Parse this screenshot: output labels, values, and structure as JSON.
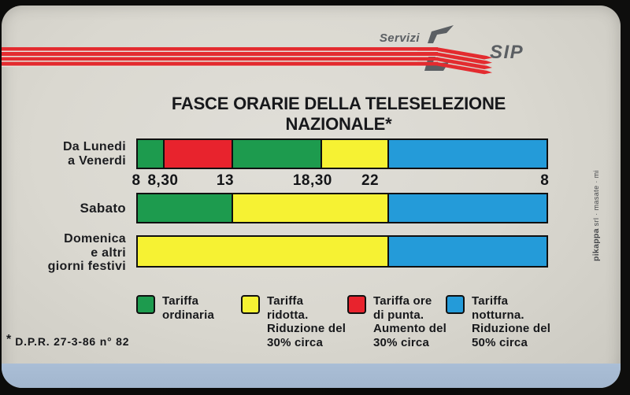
{
  "logo": {
    "servizi": "Servizi",
    "sip": "SIP"
  },
  "title": "FASCE ORARIE DELLA TELESELEZIONE NAZIONALE*",
  "colors": {
    "green": "#1d9b4e",
    "red": "#e8232d",
    "yellow": "#f6f233",
    "blue": "#249bd9",
    "stripe_red": "#e32b2f",
    "logo_gray": "#5b5f63",
    "card_bg": "#dad8d0",
    "bottom_band_blue": "#a7bbd3",
    "text_dark": "#17181b"
  },
  "chart_data": {
    "type": "bar",
    "subtype": "horizontal-time-bands",
    "title": "FASCE ORARIE DELLA TELESELEZIONE NAZIONALE*",
    "x_tick_labels": [
      "8",
      "8,30",
      "13",
      "18,30",
      "22",
      "8"
    ],
    "x_axis_note": "hours of day, from 8:00 to 8:00 of the next day",
    "legend_position": "bottom",
    "rows": [
      {
        "category": "Da Lunedi a Venerdi",
        "category_lines": [
          "Da Lunedi",
          "a Venerdi"
        ],
        "bands": [
          {
            "start": "8",
            "end": "8,30",
            "tariff": "Tariffa ordinaria",
            "color_key": "green",
            "width_pct": 6.1
          },
          {
            "start": "8,30",
            "end": "13",
            "tariff": "Tariffa ore di punta",
            "color_key": "red",
            "width_pct": 16.8
          },
          {
            "start": "13",
            "end": "18,30",
            "tariff": "Tariffa ordinaria",
            "color_key": "green",
            "width_pct": 21.8
          },
          {
            "start": "18,30",
            "end": "22",
            "tariff": "Tariffa ridotta",
            "color_key": "yellow",
            "width_pct": 16.3
          },
          {
            "start": "22",
            "end": "8",
            "tariff": "Tariffa notturna",
            "color_key": "blue",
            "width_pct": 39.0
          }
        ]
      },
      {
        "category": "Sabato",
        "category_lines": [
          "Sabato"
        ],
        "bands": [
          {
            "start": "8",
            "end": "13",
            "tariff": "Tariffa ordinaria",
            "color_key": "green",
            "width_pct": 22.9
          },
          {
            "start": "13",
            "end": "22",
            "tariff": "Tariffa ridotta",
            "color_key": "yellow",
            "width_pct": 38.1
          },
          {
            "start": "22",
            "end": "8",
            "tariff": "Tariffa notturna",
            "color_key": "blue",
            "width_pct": 39.0
          }
        ]
      },
      {
        "category": "Domenica e altri giorni festivi",
        "category_lines": [
          "Domenica",
          "e altri",
          "giorni festivi"
        ],
        "bands": [
          {
            "start": "8",
            "end": "22",
            "tariff": "Tariffa ridotta",
            "color_key": "yellow",
            "width_pct": 61.0
          },
          {
            "start": "22",
            "end": "8",
            "tariff": "Tariffa notturna",
            "color_key": "blue",
            "width_pct": 39.0
          }
        ]
      }
    ],
    "ticks": [
      {
        "label": "8",
        "pos_pct": 0
      },
      {
        "label": "8,30",
        "pos_pct": 6.5
      },
      {
        "label": "13",
        "pos_pct": 21.6
      },
      {
        "label": "18,30",
        "pos_pct": 42.8
      },
      {
        "label": "22",
        "pos_pct": 56.8
      },
      {
        "label": "8",
        "pos_pct": 99.2
      }
    ]
  },
  "legend": [
    {
      "color_key": "green",
      "lines": [
        "Tariffa",
        "ordinaria"
      ]
    },
    {
      "color_key": "yellow",
      "lines": [
        "Tariffa",
        "ridotta.",
        "Riduzione del",
        "30% circa"
      ]
    },
    {
      "color_key": "red",
      "lines": [
        "Tariffa ore",
        "di punta.",
        "Aumento del",
        "30% circa"
      ]
    },
    {
      "color_key": "blue",
      "lines": [
        "Tariffa",
        "notturna.",
        "Riduzione del",
        "50% circa"
      ]
    }
  ],
  "footnote": {
    "marker": "*",
    "text": "D.P.R. 27-3-86 n° 82"
  },
  "credit": {
    "brand": "pikappa",
    "rest": " srl · masate · mi"
  }
}
